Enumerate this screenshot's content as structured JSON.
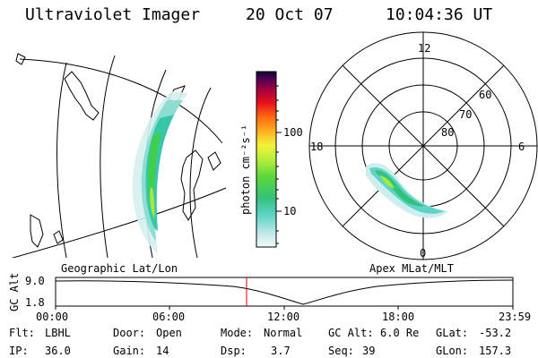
{
  "header": {
    "title": "Ultraviolet Imager",
    "date": "20 Oct 07",
    "time": "10:04:36 UT"
  },
  "map": {
    "label": "Geographic Lat/Lon"
  },
  "colorbar": {
    "unit_label": "photon cm⁻²s⁻¹",
    "ticks": [
      "100",
      "10"
    ]
  },
  "polar": {
    "label": "Apex MLat/MLT",
    "mlt_labels": {
      "top": "12",
      "left": "18",
      "right": "6",
      "bottom": "0"
    },
    "lat_labels": [
      "60",
      "70",
      "80"
    ]
  },
  "timeline": {
    "axis_label": "GC Alt",
    "y_ticks": [
      "9.0",
      "1.8"
    ],
    "x_ticks": [
      "00:00",
      "06:00",
      "12:00",
      "18:00",
      "23:59"
    ],
    "marker_color": "#dd0000"
  },
  "status": {
    "filter": {
      "label": "Flt:",
      "value": "LBHL"
    },
    "ip": {
      "label": "IP:",
      "value": "36.0"
    },
    "door": {
      "label": "Door:",
      "value": "Open"
    },
    "gain": {
      "label": "Gain:",
      "value": "14"
    },
    "mode": {
      "label": "Mode:",
      "value": "Normal"
    },
    "dsp": {
      "label": "Dsp:",
      "value": "3.7"
    },
    "gc_alt": {
      "label": "GC Alt:",
      "value": "6.0 Re"
    },
    "seq": {
      "label": "Seq:",
      "value": "39"
    },
    "glat": {
      "label": "GLat:",
      "value": "-53.2"
    },
    "glon": {
      "label": "GLon:",
      "value": "157.3"
    }
  }
}
